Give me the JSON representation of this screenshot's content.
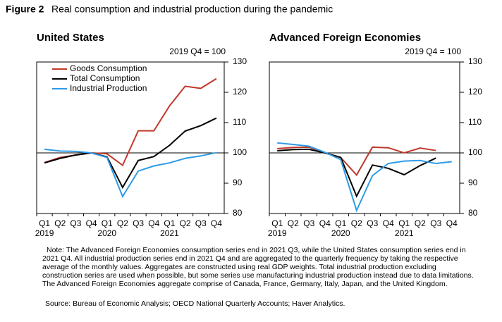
{
  "figure_label": "Figure 2",
  "title": "Real consumption and industrial production during the pandemic",
  "chart_data": [
    {
      "type": "line",
      "subtitle": "United States",
      "unit_label": "2019 Q4 = 100",
      "categories": [
        "Q1",
        "Q2",
        "Q3",
        "Q4",
        "Q1",
        "Q2",
        "Q3",
        "Q4",
        "Q1",
        "Q2",
        "Q3",
        "Q4"
      ],
      "years": [
        "2019",
        "2020",
        "2021"
      ],
      "ylim": [
        80,
        130
      ],
      "yticks": [
        80,
        90,
        100,
        110,
        120,
        130
      ],
      "reference_line": 100,
      "legend": true,
      "series": [
        {
          "name": "Goods Consumption",
          "color": "#c0392b",
          "values": [
            96.8,
            98.5,
            99.3,
            100,
            99.7,
            95.9,
            107.3,
            107.3,
            115.5,
            122,
            121.3,
            124.5
          ]
        },
        {
          "name": "Total Consumption",
          "color": "#000000",
          "values": [
            96.7,
            98.2,
            99.3,
            100,
            98.7,
            88.6,
            97.5,
            98.8,
            102.5,
            107.2,
            109,
            111.5
          ]
        },
        {
          "name": "Industrial Production",
          "color": "#2e9be6",
          "values": [
            101.2,
            100.6,
            100.5,
            100,
            98.5,
            85.6,
            94,
            95.7,
            96.7,
            98.2,
            99,
            100.1
          ]
        }
      ]
    },
    {
      "type": "line",
      "subtitle": "Advanced Foreign Economies",
      "unit_label": "2019 Q4 = 100",
      "categories": [
        "Q1",
        "Q2",
        "Q3",
        "Q4",
        "Q1",
        "Q2",
        "Q3",
        "Q4",
        "Q1",
        "Q2",
        "Q3",
        "Q4"
      ],
      "years": [
        "2019",
        "2020",
        "2021"
      ],
      "ylim": [
        80,
        130
      ],
      "yticks": [
        80,
        90,
        100,
        110,
        120,
        130
      ],
      "reference_line": 100,
      "legend": false,
      "series": [
        {
          "color": "#c0392b",
          "values": [
            101.4,
            101.8,
            101.9,
            100,
            98.5,
            92.7,
            101.9,
            101.7,
            100,
            101.6,
            100.8,
            null
          ]
        },
        {
          "color": "#000000",
          "values": [
            100.7,
            101.1,
            101.2,
            100,
            98.5,
            85.7,
            96,
            94.9,
            92.8,
            95.8,
            98.3,
            null
          ]
        },
        {
          "color": "#2e9be6",
          "values": [
            103.3,
            102.8,
            102.2,
            100.2,
            97.8,
            81,
            92.5,
            96.5,
            97.3,
            97.5,
            96.5,
            97.1
          ]
        }
      ]
    }
  ],
  "note": "Note: The Advanced Foreign Economies consumption series end in 2021 Q3, while the United States consumption series end in 2021 Q4. All industrial production series end in 2021 Q4 and are aggregated to the quarterly frequency by taking the respective average of the monthly values. Aggregates are constructed using real GDP weights. Total industrial production excluding construction series are used when possible, but some series use manufacturing industrial production instead due to data limitations. The Advanced Foreign Economies aggregate comprise of Canada, France, Germany, Italy, Japan, and the United Kingdom.",
  "source": "Source: Bureau of Economic Analysis; OECD National Quarterly Accounts; Haver Analytics."
}
